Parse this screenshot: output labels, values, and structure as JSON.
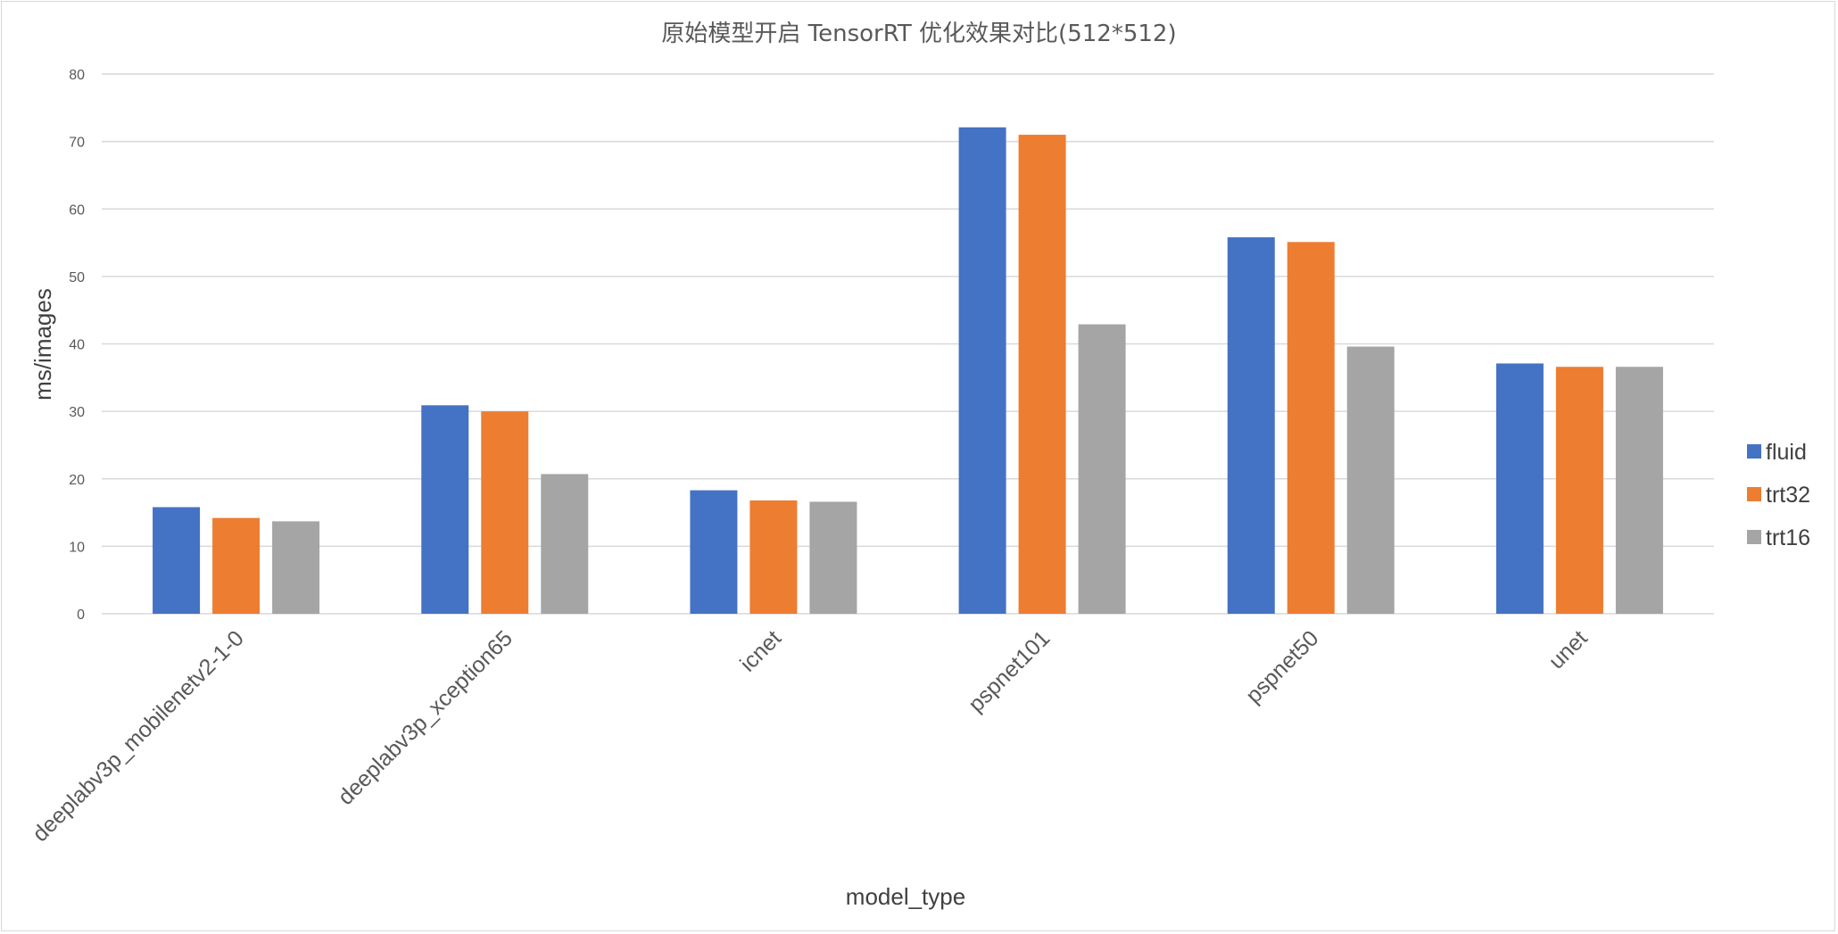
{
  "chart_data": {
    "type": "bar",
    "title": "原始模型开启 TensorRT 优化效果对比(512*512)",
    "xlabel": "model_type",
    "ylabel": "ms/images",
    "ylim": [
      0,
      80
    ],
    "yticks": [
      0,
      10,
      20,
      30,
      40,
      50,
      60,
      70,
      80
    ],
    "grid": true,
    "legend_position": "right",
    "categories": [
      "deeplabv3p_mobilenetv2-1-0",
      "deeplabv3p_xception65",
      "icnet",
      "pspnet101",
      "pspnet50",
      "unet"
    ],
    "series": [
      {
        "name": "fluid",
        "color": "#4472C4",
        "values": [
          15.8,
          30.9,
          18.3,
          72.1,
          55.8,
          37.1
        ]
      },
      {
        "name": "trt32",
        "color": "#ED7D31",
        "values": [
          14.2,
          30.0,
          16.8,
          71.0,
          55.1,
          36.6
        ]
      },
      {
        "name": "trt16",
        "color": "#A5A5A5",
        "values": [
          13.7,
          20.7,
          16.6,
          42.9,
          39.6,
          36.6
        ]
      }
    ]
  }
}
